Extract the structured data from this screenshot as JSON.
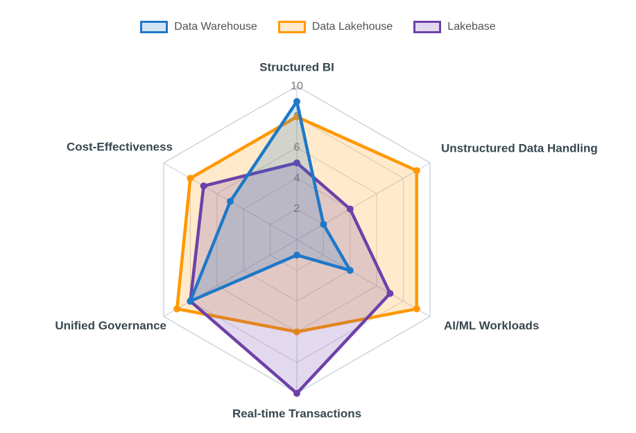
{
  "chart_data": {
    "type": "radar",
    "categories": [
      "Structured BI",
      "Unstructured Data Handling",
      "AI/ML Workloads",
      "Real-time Transactions",
      "Unified Governance",
      "Cost-Effectiveness"
    ],
    "series": [
      {
        "name": "Data Warehouse",
        "color": "#1E78C8",
        "fill_tint": "#D2E4F4",
        "values": [
          9,
          2,
          4,
          1,
          8,
          5
        ]
      },
      {
        "name": "Data Lakehouse",
        "color": "#FF9800",
        "fill_tint": "#FFEACC",
        "values": [
          8,
          9,
          9,
          6,
          9,
          8
        ]
      },
      {
        "name": "Lakebase",
        "color": "#6D41A8",
        "fill_tint": "#E2D9EE",
        "values": [
          5,
          4,
          7,
          10,
          8,
          7
        ]
      }
    ],
    "scale": {
      "min": 0,
      "max": 10,
      "ticks": [
        2,
        4,
        6,
        8,
        10
      ]
    },
    "legend_position": "top",
    "grid": true,
    "colors": {
      "grid_ring": "#D6D6D6",
      "grid_outer": "#C7D2DC",
      "spoke": "#C7D2DC",
      "tick_text": "#777777",
      "axis_label_text": "#37474F",
      "legend_text": "#525252",
      "background": "#FFFFFF"
    }
  }
}
